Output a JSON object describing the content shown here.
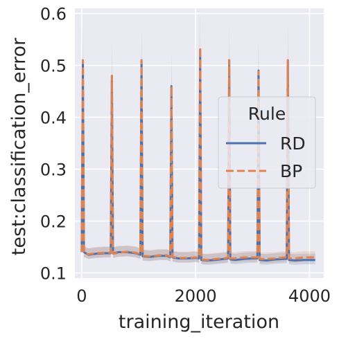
{
  "chart_data": {
    "type": "line",
    "title": "",
    "xlabel": "training_iteration",
    "ylabel": "test:classification_error",
    "xlim": [
      -120,
      4250
    ],
    "ylim": [
      0.09,
      0.61
    ],
    "xticks": [
      0,
      2000,
      4000
    ],
    "xtick_labels": [
      "0",
      "2000",
      "4000"
    ],
    "yticks": [
      0.1,
      0.2,
      0.3,
      0.4,
      0.5,
      0.6
    ],
    "ytick_labels": [
      "0.1",
      "0.2",
      "0.3",
      "0.4",
      "0.5",
      "0.6"
    ],
    "grid": true,
    "background": "#eaeaf2",
    "legend": {
      "title": "Rule",
      "placement": "center-right",
      "entries": [
        {
          "label": "RD",
          "color": "#4c72b0",
          "dash": "solid"
        },
        {
          "label": "BP",
          "color": "#dd8452",
          "dash": "dashed"
        }
      ]
    },
    "series": [
      {
        "name": "RD",
        "color": "#4c72b0",
        "dash": "solid",
        "x": [
          0,
          20,
          40,
          120,
          250,
          400,
          510,
          530,
          550,
          650,
          800,
          950,
          1030,
          1050,
          1070,
          1200,
          1350,
          1500,
          1555,
          1575,
          1595,
          1700,
          1850,
          2000,
          2060,
          2080,
          2100,
          2200,
          2350,
          2500,
          2570,
          2590,
          2610,
          2700,
          2850,
          3000,
          3085,
          3105,
          3125,
          3250,
          3400,
          3550,
          3600,
          3620,
          3640,
          3750,
          3900,
          4100
        ],
        "y": [
          0.14,
          0.51,
          0.14,
          0.135,
          0.137,
          0.138,
          0.138,
          0.48,
          0.138,
          0.14,
          0.14,
          0.138,
          0.135,
          0.51,
          0.132,
          0.131,
          0.133,
          0.133,
          0.13,
          0.46,
          0.13,
          0.128,
          0.128,
          0.129,
          0.128,
          0.53,
          0.125,
          0.124,
          0.125,
          0.127,
          0.128,
          0.51,
          0.126,
          0.125,
          0.127,
          0.128,
          0.128,
          0.49,
          0.125,
          0.124,
          0.126,
          0.127,
          0.127,
          0.51,
          0.125,
          0.124,
          0.125,
          0.125
        ]
      },
      {
        "name": "BP",
        "color": "#dd8452",
        "dash": "dashed",
        "x": [
          0,
          20,
          40,
          120,
          250,
          400,
          510,
          530,
          550,
          650,
          800,
          950,
          1030,
          1050,
          1070,
          1200,
          1350,
          1500,
          1555,
          1575,
          1595,
          1700,
          1850,
          2000,
          2060,
          2080,
          2100,
          2200,
          2350,
          2500,
          2570,
          2590,
          2610,
          2700,
          2850,
          3000,
          3085,
          3105,
          3125,
          3250,
          3400,
          3550,
          3600,
          3620,
          3640,
          3750,
          3900,
          4100
        ],
        "y": [
          0.14,
          0.51,
          0.138,
          0.136,
          0.138,
          0.139,
          0.139,
          0.48,
          0.137,
          0.139,
          0.141,
          0.139,
          0.136,
          0.51,
          0.133,
          0.132,
          0.134,
          0.134,
          0.131,
          0.46,
          0.131,
          0.129,
          0.129,
          0.13,
          0.129,
          0.535,
          0.126,
          0.125,
          0.127,
          0.128,
          0.13,
          0.51,
          0.128,
          0.128,
          0.13,
          0.13,
          0.13,
          0.488,
          0.127,
          0.127,
          0.128,
          0.13,
          0.13,
          0.51,
          0.128,
          0.128,
          0.13,
          0.13
        ]
      }
    ]
  }
}
